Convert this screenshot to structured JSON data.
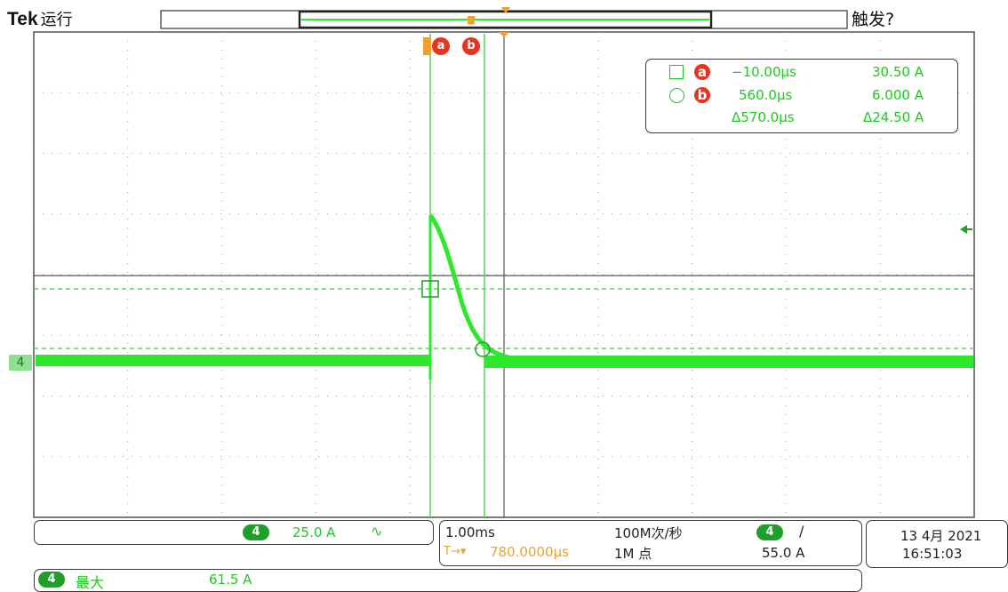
{
  "header": {
    "brand": "Tek",
    "run_state": "运行",
    "trigger_state": "触发?"
  },
  "cursor_labels": {
    "cursor_a": "a",
    "cursor_b": "b",
    "trigger_mark": "T"
  },
  "cursor_readout": {
    "row_a": {
      "time": "−10.00µs",
      "value": "30.50 A"
    },
    "row_b": {
      "time": "560.0µs",
      "value": "6.000 A"
    },
    "delta": {
      "time": "Δ570.0µs",
      "value": "Δ24.50 A"
    }
  },
  "channel_marker": "4",
  "channel_panel": {
    "channel": "4",
    "scale": "25.0 A",
    "coupling_icon": "∿"
  },
  "timebase_panel": {
    "horizontal_scale": "1.00ms",
    "sample_rate": "100M次/秒",
    "trigger_position_icon": "T→▾",
    "delay": "780.0000µs",
    "record_length": "1M 点"
  },
  "trigger_panel": {
    "channel": "4",
    "slope_icon": "/",
    "level": "55.0 A"
  },
  "datetime_panel": {
    "date": "13 4月 2021",
    "time": "16:51:03"
  },
  "measurement_panel": {
    "channel": "4",
    "label": "最大",
    "value": "61.5 A"
  },
  "colors": {
    "waveform": "#2ee82e",
    "cursor": "#5fd35f",
    "accent_orange": "#f0a030",
    "cursor_badge": "#e8331e",
    "channel_pill": "#1f9e2a"
  }
}
